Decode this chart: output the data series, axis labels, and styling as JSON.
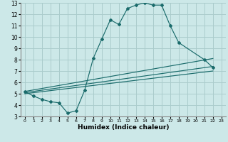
{
  "xlabel": "Humidex (Indice chaleur)",
  "bg_color": "#cce8e8",
  "grid_color": "#aacccc",
  "line_color": "#1a6b6b",
  "xlim": [
    -0.5,
    23.5
  ],
  "ylim": [
    3,
    13
  ],
  "xticks": [
    0,
    1,
    2,
    3,
    4,
    5,
    6,
    7,
    8,
    9,
    10,
    11,
    12,
    13,
    14,
    15,
    16,
    17,
    18,
    19,
    20,
    21,
    22,
    23
  ],
  "yticks": [
    3,
    4,
    5,
    6,
    7,
    8,
    9,
    10,
    11,
    12,
    13
  ],
  "curve_x": [
    0,
    1,
    2,
    3,
    4,
    5,
    6,
    7,
    8,
    9,
    10,
    11,
    12,
    13,
    14,
    15,
    16,
    17,
    18,
    21,
    22
  ],
  "curve_y": [
    5.2,
    4.8,
    4.5,
    4.3,
    4.2,
    3.3,
    3.5,
    5.3,
    8.1,
    9.8,
    11.5,
    11.1,
    12.5,
    12.8,
    13.0,
    12.8,
    12.8,
    11.0,
    9.5,
    8.0,
    7.3
  ],
  "line1": {
    "x": [
      0,
      22
    ],
    "y": [
      5.2,
      8.1
    ]
  },
  "line2": {
    "x": [
      0,
      22
    ],
    "y": [
      5.1,
      7.4
    ]
  },
  "line3": {
    "x": [
      0,
      22
    ],
    "y": [
      5.0,
      7.0
    ]
  }
}
